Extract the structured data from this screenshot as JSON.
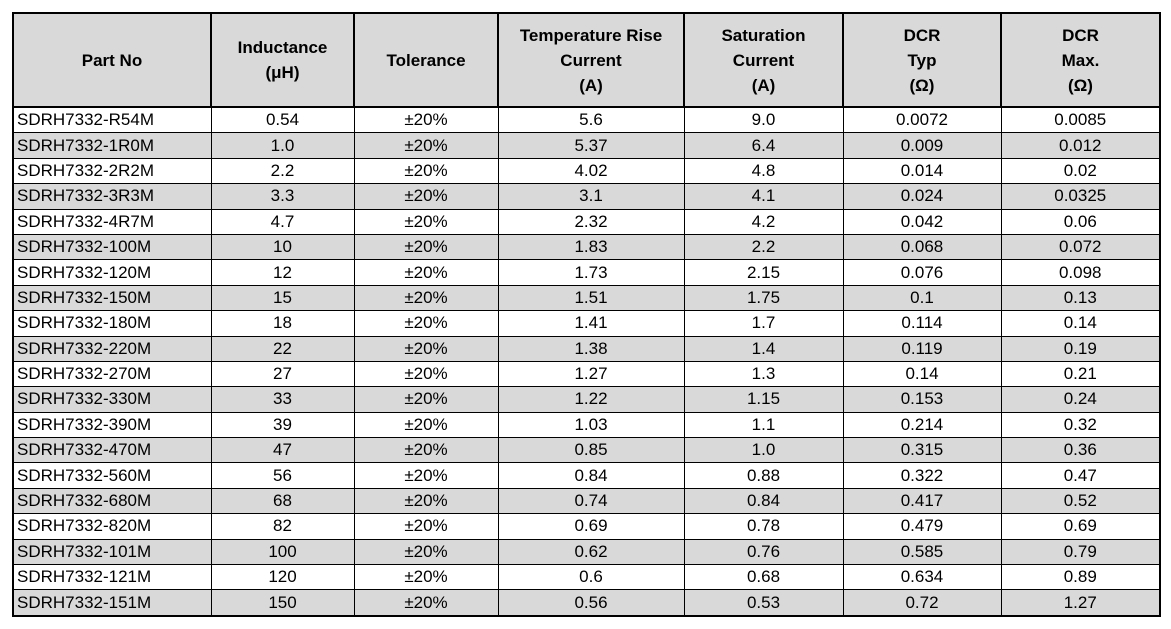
{
  "table": {
    "headers": [
      [
        "Part No"
      ],
      [
        "Inductance",
        "(μH)"
      ],
      [
        "Tolerance"
      ],
      [
        "Temperature Rise",
        "Current",
        "(A)"
      ],
      [
        "Saturation",
        "Current",
        "(A)"
      ],
      [
        "DCR",
        "Typ",
        "(Ω)"
      ],
      [
        "DCR",
        "Max.",
        "(Ω)"
      ]
    ],
    "rows": [
      [
        "SDRH7332-R54M",
        "0.54",
        "±20%",
        "5.6",
        "9.0",
        "0.0072",
        "0.0085"
      ],
      [
        "SDRH7332-1R0M",
        "1.0",
        "±20%",
        "5.37",
        "6.4",
        "0.009",
        "0.012"
      ],
      [
        "SDRH7332-2R2M",
        "2.2",
        "±20%",
        "4.02",
        "4.8",
        "0.014",
        "0.02"
      ],
      [
        "SDRH7332-3R3M",
        "3.3",
        "±20%",
        "3.1",
        "4.1",
        "0.024",
        "0.0325"
      ],
      [
        "SDRH7332-4R7M",
        "4.7",
        "±20%",
        "2.32",
        "4.2",
        "0.042",
        "0.06"
      ],
      [
        "SDRH7332-100M",
        "10",
        "±20%",
        "1.83",
        "2.2",
        "0.068",
        "0.072"
      ],
      [
        "SDRH7332-120M",
        "12",
        "±20%",
        "1.73",
        "2.15",
        "0.076",
        "0.098"
      ],
      [
        "SDRH7332-150M",
        "15",
        "±20%",
        "1.51",
        "1.75",
        "0.1",
        "0.13"
      ],
      [
        "SDRH7332-180M",
        "18",
        "±20%",
        "1.41",
        "1.7",
        "0.114",
        "0.14"
      ],
      [
        "SDRH7332-220M",
        "22",
        "±20%",
        "1.38",
        "1.4",
        "0.119",
        "0.19"
      ],
      [
        "SDRH7332-270M",
        "27",
        "±20%",
        "1.27",
        "1.3",
        "0.14",
        "0.21"
      ],
      [
        "SDRH7332-330M",
        "33",
        "±20%",
        "1.22",
        "1.15",
        "0.153",
        "0.24"
      ],
      [
        "SDRH7332-390M",
        "39",
        "±20%",
        "1.03",
        "1.1",
        "0.214",
        "0.32"
      ],
      [
        "SDRH7332-470M",
        "47",
        "±20%",
        "0.85",
        "1.0",
        "0.315",
        "0.36"
      ],
      [
        "SDRH7332-560M",
        "56",
        "±20%",
        "0.84",
        "0.88",
        "0.322",
        "0.47"
      ],
      [
        "SDRH7332-680M",
        "68",
        "±20%",
        "0.74",
        "0.84",
        "0.417",
        "0.52"
      ],
      [
        "SDRH7332-820M",
        "82",
        "±20%",
        "0.69",
        "0.78",
        "0.479",
        "0.69"
      ],
      [
        "SDRH7332-101M",
        "100",
        "±20%",
        "0.62",
        "0.76",
        "0.585",
        "0.79"
      ],
      [
        "SDRH7332-121M",
        "120",
        "±20%",
        "0.6",
        "0.68",
        "0.634",
        "0.89"
      ],
      [
        "SDRH7332-151M",
        "150",
        "±20%",
        "0.56",
        "0.53",
        "0.72",
        "1.27"
      ]
    ]
  },
  "colors": {
    "header_bg": "#d9d9d9",
    "stripe_bg": "#d9d9d9",
    "row_bg": "#ffffff",
    "border": "#000000"
  }
}
